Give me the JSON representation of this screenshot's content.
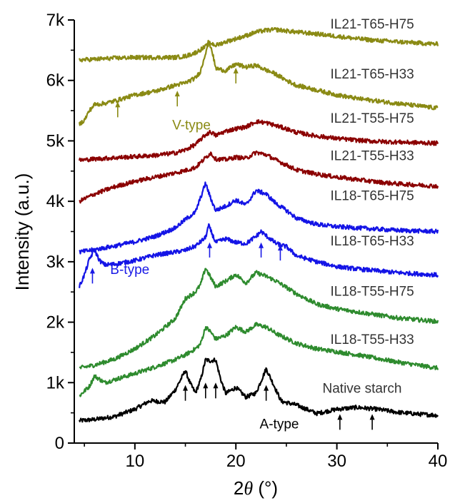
{
  "chart_data": {
    "type": "line",
    "title": "",
    "xlabel": "2θ (°)",
    "xlabel_prefix": "2",
    "xlabel_symbol": "θ",
    "xlabel_unit": " (°)",
    "ylabel": "Intensity (a.u.)",
    "xlim": [
      4,
      40
    ],
    "ylim": [
      0,
      7000
    ],
    "x_ticks": [
      10,
      20,
      30,
      40
    ],
    "x_tick_labels": [
      "10",
      "20",
      "30",
      "40"
    ],
    "y_ticks": [
      0,
      1000,
      2000,
      3000,
      4000,
      5000,
      6000,
      7000
    ],
    "y_tick_labels": [
      "0",
      "1k",
      "2k",
      "3k",
      "4k",
      "5k",
      "6k",
      "7k"
    ],
    "grid": false,
    "legend": "none",
    "series": [
      {
        "name": "Native starch",
        "color": "#000000",
        "x": [
          4.5,
          6,
          8,
          10,
          11.5,
          13,
          14,
          15,
          15.5,
          16,
          16.5,
          17,
          17.5,
          18,
          18.5,
          19,
          20,
          21,
          22,
          23,
          23.5,
          24.5,
          26,
          28,
          30,
          32,
          34,
          36,
          38,
          40
        ],
        "y": [
          370,
          390,
          440,
          560,
          700,
          680,
          880,
          1200,
          980,
          830,
          1040,
          1380,
          1360,
          1380,
          1050,
          820,
          920,
          760,
          830,
          1230,
          1050,
          690,
          630,
          490,
          560,
          590,
          560,
          510,
          480,
          460
        ]
      },
      {
        "name": "IL18-T55-H33",
        "color": "#2e8b2e",
        "x": [
          4.5,
          5.5,
          6,
          7,
          8,
          10,
          12,
          14,
          15,
          16,
          16.5,
          17,
          17.5,
          18,
          19,
          20,
          21,
          22,
          23,
          24,
          26,
          28,
          30,
          32,
          34,
          36,
          38,
          40
        ],
        "y": [
          780,
          940,
          1110,
          1000,
          1050,
          1150,
          1260,
          1380,
          1460,
          1560,
          1640,
          1920,
          1840,
          1720,
          1780,
          1920,
          1840,
          1960,
          1920,
          1810,
          1650,
          1560,
          1510,
          1460,
          1400,
          1340,
          1290,
          1240
        ]
      },
      {
        "name": "IL18-T55-H75",
        "color": "#2e8b2e",
        "x": [
          4.5,
          6,
          8,
          10,
          12,
          14,
          15,
          16,
          16.5,
          17,
          17.5,
          18,
          19,
          20,
          21,
          22,
          23,
          24,
          26,
          28,
          30,
          32,
          34,
          36,
          38,
          40
        ],
        "y": [
          1240,
          1290,
          1390,
          1560,
          1780,
          2060,
          2390,
          2500,
          2620,
          2900,
          2740,
          2590,
          2680,
          2790,
          2650,
          2820,
          2760,
          2680,
          2470,
          2300,
          2220,
          2170,
          2120,
          2070,
          2040,
          2010
        ]
      },
      {
        "name": "IL18-T65-H33",
        "color": "#1414e6",
        "x": [
          4.5,
          5,
          5.5,
          6,
          6.5,
          7,
          8,
          10,
          12,
          14,
          15,
          16,
          17,
          17.3,
          17.6,
          18,
          19,
          20,
          21,
          22,
          22.5,
          23,
          24,
          25,
          26,
          28,
          30,
          32,
          34,
          36,
          38,
          40
        ],
        "y": [
          2590,
          2780,
          3040,
          3200,
          3020,
          2950,
          2960,
          3020,
          3110,
          3160,
          3190,
          3260,
          3400,
          3600,
          3480,
          3320,
          3380,
          3320,
          3300,
          3420,
          3500,
          3430,
          3300,
          3250,
          3100,
          3000,
          2920,
          2880,
          2850,
          2820,
          2800,
          2780
        ]
      },
      {
        "name": "IL18-T65-H75",
        "color": "#1414e6",
        "x": [
          4.5,
          6,
          8,
          10,
          12,
          14,
          15,
          16,
          17,
          17.5,
          18,
          19,
          20,
          21,
          22,
          23,
          24,
          25,
          26,
          28,
          30,
          32,
          34,
          36,
          38,
          40
        ],
        "y": [
          3160,
          3200,
          3260,
          3330,
          3420,
          3560,
          3700,
          3820,
          4300,
          4050,
          3850,
          3920,
          4020,
          3940,
          4180,
          4120,
          3960,
          3850,
          3720,
          3620,
          3580,
          3560,
          3540,
          3520,
          3510,
          3500
        ]
      },
      {
        "name": "IL21-T55-H33",
        "color": "#8b0000",
        "x": [
          4.5,
          6,
          8,
          10,
          12,
          14,
          15,
          16,
          17,
          17.5,
          18,
          19,
          20,
          21,
          22,
          23,
          24,
          25,
          26,
          28,
          30,
          32,
          34,
          36,
          38,
          40
        ],
        "y": [
          4000,
          4120,
          4240,
          4330,
          4400,
          4470,
          4510,
          4560,
          4720,
          4800,
          4700,
          4690,
          4730,
          4710,
          4810,
          4770,
          4680,
          4600,
          4520,
          4450,
          4400,
          4360,
          4320,
          4290,
          4270,
          4250
        ]
      },
      {
        "name": "IL21-T55-H75",
        "color": "#8b0000",
        "x": [
          4.5,
          6,
          8,
          10,
          12,
          14,
          15,
          16,
          17,
          17.5,
          18,
          19,
          20,
          21,
          22,
          23,
          24,
          25,
          26,
          28,
          30,
          32,
          34,
          36,
          38,
          40
        ],
        "y": [
          4680,
          4700,
          4720,
          4740,
          4760,
          4800,
          4850,
          4940,
          5100,
          5150,
          5090,
          5160,
          5200,
          5230,
          5320,
          5300,
          5250,
          5200,
          5140,
          5080,
          5040,
          5010,
          4990,
          4980,
          4970,
          4960
        ]
      },
      {
        "name": "IL21-T65-H33",
        "color": "#8a8a14",
        "x": [
          4.5,
          5,
          5.5,
          6,
          7,
          8,
          10,
          12,
          14,
          15,
          16,
          16.5,
          17,
          17.3,
          17.6,
          18,
          19,
          20,
          21,
          22,
          23,
          24,
          25,
          26,
          28,
          30,
          32,
          34,
          36,
          38,
          40
        ],
        "y": [
          5280,
          5340,
          5500,
          5600,
          5620,
          5660,
          5760,
          5820,
          5920,
          5960,
          6040,
          6150,
          6460,
          6650,
          6520,
          6200,
          6160,
          6270,
          6220,
          6250,
          6170,
          6100,
          6000,
          5920,
          5840,
          5760,
          5700,
          5660,
          5620,
          5580,
          5540
        ]
      },
      {
        "name": "IL21-T65-H75",
        "color": "#8a8a14",
        "x": [
          4.5,
          6,
          8,
          10,
          12,
          14,
          15,
          16,
          17,
          17.5,
          18,
          19,
          20,
          21,
          22,
          23,
          24,
          25,
          26,
          28,
          30,
          32,
          34,
          36,
          38,
          40
        ],
        "y": [
          6340,
          6350,
          6370,
          6380,
          6380,
          6380,
          6400,
          6460,
          6560,
          6620,
          6580,
          6640,
          6690,
          6740,
          6800,
          6830,
          6840,
          6820,
          6800,
          6770,
          6730,
          6690,
          6660,
          6640,
          6620,
          6600
        ]
      }
    ],
    "series_labels": [
      {
        "text": "Native starch",
        "x": 32.5,
        "y": 830,
        "color": "#111111"
      },
      {
        "text": "IL18-T55-H33",
        "x": 33.5,
        "y": 1640,
        "color": "#333333"
      },
      {
        "text": "IL18-T55-H75",
        "x": 33.5,
        "y": 2440,
        "color": "#333333"
      },
      {
        "text": "IL18-T65-H33",
        "x": 33.5,
        "y": 3270,
        "color": "#333333"
      },
      {
        "text": "IL18-T65-H75",
        "x": 33.5,
        "y": 4020,
        "color": "#333333"
      },
      {
        "text": "IL21-T55-H33",
        "x": 33.5,
        "y": 4680,
        "color": "#333333"
      },
      {
        "text": "IL21-T55-H75",
        "x": 33.5,
        "y": 5300,
        "color": "#333333"
      },
      {
        "text": "IL21-T65-H33",
        "x": 33.5,
        "y": 6030,
        "color": "#333333"
      },
      {
        "text": "IL21-T65-H75",
        "x": 33.5,
        "y": 6860,
        "color": "#333333"
      }
    ],
    "annotations": [
      {
        "text": "A-type",
        "x": 24.3,
        "y": 240,
        "color": "#000000"
      },
      {
        "text": "B-type",
        "x": 9.5,
        "y": 2800,
        "color": "#1a1ae6"
      },
      {
        "text": "V-type",
        "x": 15.6,
        "y": 5190,
        "color": "#8a8a14"
      }
    ],
    "arrows": [
      {
        "x": 15.0,
        "y_base": 700,
        "y_tip": 960,
        "color": "#000000"
      },
      {
        "x": 17.0,
        "y_base": 740,
        "y_tip": 1000,
        "color": "#000000"
      },
      {
        "x": 18.0,
        "y_base": 740,
        "y_tip": 1000,
        "color": "#000000"
      },
      {
        "x": 23.0,
        "y_base": 700,
        "y_tip": 960,
        "color": "#000000"
      },
      {
        "x": 30.3,
        "y_base": 220,
        "y_tip": 480,
        "color": "#000000"
      },
      {
        "x": 33.5,
        "y_base": 220,
        "y_tip": 480,
        "color": "#000000"
      },
      {
        "x": 5.8,
        "y_base": 2640,
        "y_tip": 2900,
        "color": "#1a1ae6"
      },
      {
        "x": 17.4,
        "y_base": 3070,
        "y_tip": 3320,
        "color": "#1a1ae6"
      },
      {
        "x": 22.5,
        "y_base": 3070,
        "y_tip": 3320,
        "color": "#1a1ae6"
      },
      {
        "x": 24.4,
        "y_base": 3020,
        "y_tip": 3280,
        "color": "#1a1ae6"
      },
      {
        "x": 8.3,
        "y_base": 5390,
        "y_tip": 5650,
        "color": "#8a8a14"
      },
      {
        "x": 14.2,
        "y_base": 5570,
        "y_tip": 5830,
        "color": "#8a8a14"
      },
      {
        "x": 20.0,
        "y_base": 5950,
        "y_tip": 6210,
        "color": "#8a8a14"
      }
    ]
  }
}
